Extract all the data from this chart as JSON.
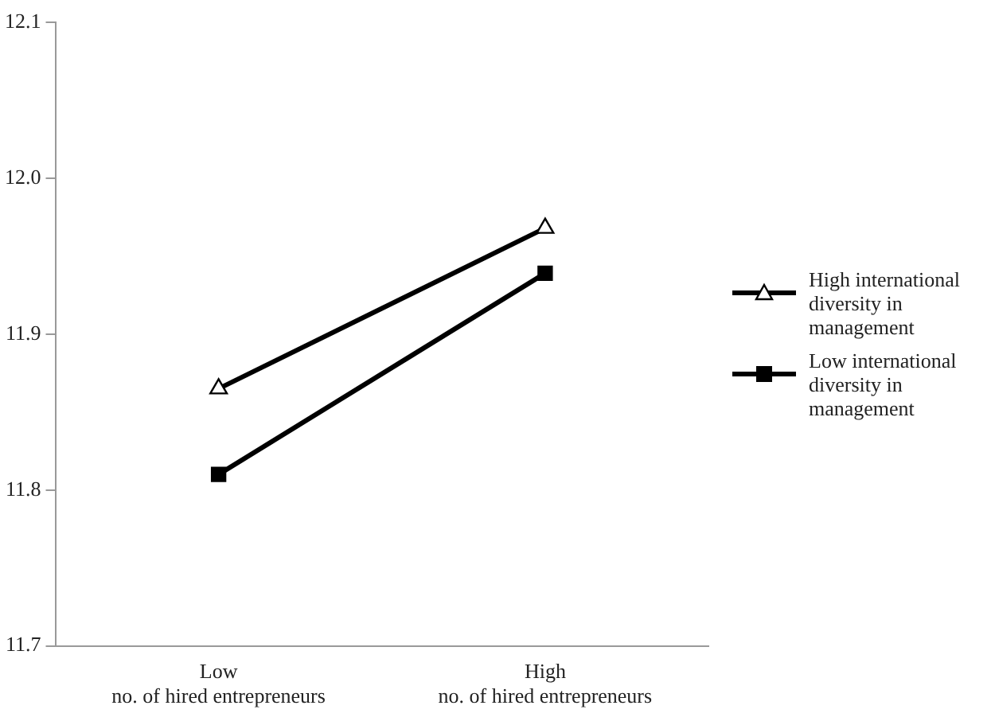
{
  "chart_data": {
    "type": "line",
    "categories": [
      "Low\nno. of hired entrepreneurs",
      "High\nno. of hired entrepreneurs"
    ],
    "series": [
      {
        "name": "High international diversity in management",
        "color": "#000000",
        "marker": "triangle",
        "values": [
          11.865,
          11.968
        ]
      },
      {
        "name": "Low international diversity in management",
        "color": "#000000",
        "marker": "square",
        "values": [
          11.81,
          11.939
        ]
      }
    ],
    "ylim": [
      11.7,
      12.1
    ],
    "yticks": [
      {
        "value": 11.7,
        "label": "11.7"
      },
      {
        "value": 11.8,
        "label": "11.8"
      },
      {
        "value": 11.9,
        "label": "11.9"
      },
      {
        "value": 12.0,
        "label": "12.0"
      },
      {
        "value": 12.1,
        "label": "12.1"
      }
    ],
    "grid": false,
    "legend": "right"
  }
}
